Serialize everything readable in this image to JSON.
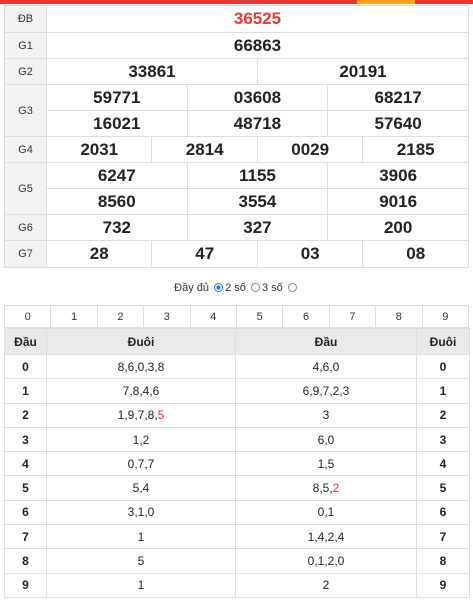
{
  "prizes": {
    "db": {
      "label": "ĐB",
      "numbers": [
        "36525"
      ]
    },
    "g1": {
      "label": "G1",
      "numbers": [
        "66863"
      ]
    },
    "g2": {
      "label": "G2",
      "numbers": [
        "33861",
        "20191"
      ]
    },
    "g3": {
      "label": "G3",
      "numbers": [
        "59771",
        "03608",
        "68217",
        "16021",
        "48718",
        "57640"
      ]
    },
    "g4": {
      "label": "G4",
      "numbers": [
        "2031",
        "2814",
        "0029",
        "2185"
      ]
    },
    "g5": {
      "label": "G5",
      "numbers": [
        "6247",
        "1155",
        "3906",
        "8560",
        "3554",
        "9016"
      ]
    },
    "g6": {
      "label": "G6",
      "numbers": [
        "732",
        "327",
        "200"
      ]
    },
    "g7": {
      "label": "G7",
      "numbers": [
        "28",
        "47",
        "03",
        "08"
      ]
    }
  },
  "mode": {
    "full_label": "Đầy đủ",
    "two_label": "2 số",
    "three_label": "3 số",
    "selected": "2 số"
  },
  "digit_filter": [
    "0",
    "1",
    "2",
    "3",
    "4",
    "5",
    "6",
    "7",
    "8",
    "9"
  ],
  "loto": {
    "headers": {
      "dau": "Đầu",
      "duoi": "Đuôi",
      "dau2": "Đầu",
      "duoi2": "Đuôi"
    },
    "rows": [
      {
        "head": "0",
        "tails": "8,6,0,3,8",
        "heads": "4,6,0",
        "tail": "0"
      },
      {
        "head": "1",
        "tails": "7,8,4,6",
        "heads": "6,9,7,2,3",
        "tail": "1"
      },
      {
        "head": "2",
        "tails": "1,9,7,8,",
        "tails_hl": "5",
        "heads": "3",
        "tail": "2"
      },
      {
        "head": "3",
        "tails": "1,2",
        "heads": "6,0",
        "tail": "3"
      },
      {
        "head": "4",
        "tails": "0,7,7",
        "heads": "1,5",
        "tail": "4"
      },
      {
        "head": "5",
        "tails": "5,4",
        "heads": "8,5,",
        "heads_hl": "2",
        "tail": "5"
      },
      {
        "head": "6",
        "tails": "3,1,0",
        "heads": "0,1",
        "tail": "6"
      },
      {
        "head": "7",
        "tails": "1",
        "heads": "1,4,2,4",
        "tail": "7"
      },
      {
        "head": "8",
        "tails": "5",
        "heads": "0,1,2,0",
        "tail": "8"
      },
      {
        "head": "9",
        "tails": "1",
        "heads": "2",
        "tail": "9"
      }
    ]
  },
  "colors": {
    "accent": "#e53935",
    "secondary": "#ff9f1a"
  }
}
